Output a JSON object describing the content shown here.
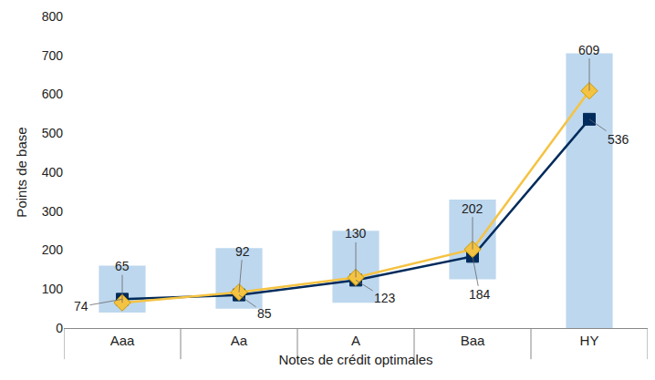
{
  "chart_data": {
    "type": "line",
    "xlabel": "Notes de crédit optimales",
    "ylabel": "Points de base",
    "categories": [
      "Aaa",
      "Aa",
      "A",
      "Baa",
      "HY"
    ],
    "series": [
      {
        "type": "bar",
        "color": "#bdd7ee",
        "low": [
          40,
          50,
          65,
          125,
          0
        ],
        "values": [
          160,
          205,
          250,
          330,
          705
        ],
        "data_labels": false
      },
      {
        "type": "line",
        "color": "#002b5c",
        "marker": "square",
        "line_style": "solid",
        "values": [
          74,
          85,
          123,
          184,
          536
        ],
        "data_labels": true
      },
      {
        "type": "line",
        "color": "#f5c342",
        "marker": "diamond",
        "line_style": "solid",
        "values": [
          65,
          92,
          130,
          202,
          609
        ],
        "data_labels": true
      }
    ],
    "ylim": [
      0,
      800
    ],
    "yticks": [
      0,
      100,
      200,
      300,
      400,
      500,
      600,
      700,
      800
    ],
    "grid": false
  }
}
